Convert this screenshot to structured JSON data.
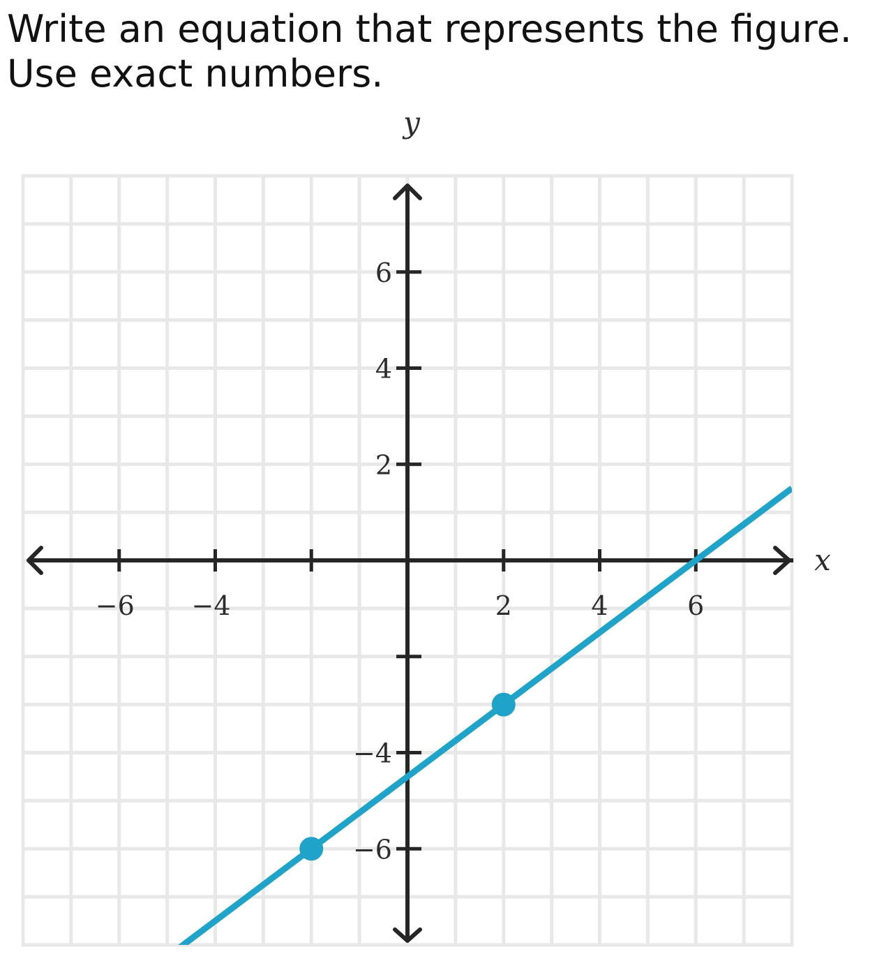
{
  "question": {
    "line1": "Write an equation that represents the figure.",
    "line2": "Use exact numbers."
  },
  "chart_data": {
    "type": "line",
    "title": "",
    "xlabel": "x",
    "ylabel": "y",
    "xlim": [
      -8,
      8
    ],
    "ylim": [
      -8,
      8
    ],
    "grid": true,
    "grid_step": 1,
    "x_tick_values": [
      -6,
      -4,
      -2,
      2,
      4,
      6
    ],
    "x_tick_labels": [
      "−6",
      "−4",
      "",
      "2",
      "4",
      "6"
    ],
    "y_tick_values": [
      -6,
      -4,
      -2,
      2,
      4,
      6
    ],
    "y_tick_labels": [
      "−6",
      "−4",
      "",
      "2",
      "4",
      "6"
    ],
    "series": [
      {
        "name": "line",
        "x": [
          -4.8,
          8
        ],
        "y": [
          -8.1,
          1.5
        ],
        "color": "#1fa3c8"
      }
    ],
    "points": [
      {
        "x": -2,
        "y": -6
      },
      {
        "x": 2,
        "y": -3
      }
    ]
  }
}
